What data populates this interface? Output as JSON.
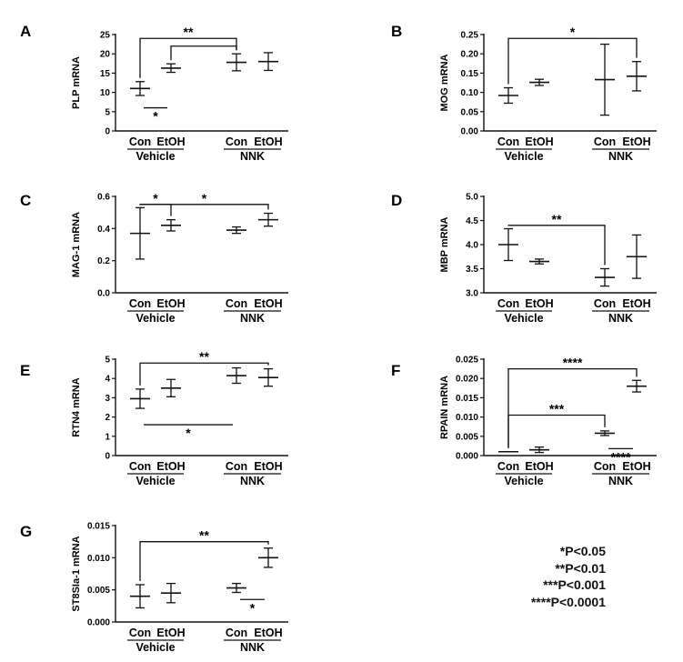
{
  "legend": [
    "*P<0.05",
    "**P<0.01",
    "***P<0.001",
    "****P<0.0001"
  ],
  "chart_data": [
    {
      "panel": "A",
      "type": "scatter",
      "ylabel": "PLP mRNA",
      "ylim": [
        0,
        25
      ],
      "yticks": [
        "0",
        "5",
        "10",
        "15",
        "20",
        "25"
      ],
      "categories": [
        "Con",
        "EtOH",
        "Con",
        "EtOH"
      ],
      "groups": [
        "Vehicle",
        "NNK"
      ],
      "means": [
        11.0,
        16.3,
        17.8,
        18.0
      ],
      "errors": [
        1.8,
        1.1,
        2.2,
        2.3
      ],
      "significance": [
        {
          "pair": [
            0,
            2
          ],
          "label": "**",
          "y": 24
        },
        {
          "pair": [
            1,
            2
          ],
          "label": "",
          "y": 22
        },
        {
          "pair": [
            0,
            1
          ],
          "label": "*",
          "y": 6,
          "below": true
        }
      ]
    },
    {
      "panel": "B",
      "type": "scatter",
      "ylabel": "MOG mRNA",
      "ylim": [
        0,
        0.25
      ],
      "yticks": [
        "0.00",
        "0.05",
        "0.10",
        "0.15",
        "0.20",
        "0.25"
      ],
      "categories": [
        "Con",
        "EtOH",
        "Con",
        "EtOH"
      ],
      "groups": [
        "Vehicle",
        "NNK"
      ],
      "means": [
        0.092,
        0.126,
        0.133,
        0.142
      ],
      "errors": [
        0.02,
        0.008,
        0.092,
        0.038
      ],
      "significance": [
        {
          "pair": [
            0,
            3
          ],
          "label": "*",
          "y": 0.24
        }
      ]
    },
    {
      "panel": "C",
      "type": "scatter",
      "ylabel": "MAG-1 mRNA",
      "ylim": [
        0,
        0.6
      ],
      "yticks": [
        "0.0",
        "0.2",
        "0.4",
        "0.6"
      ],
      "categories": [
        "Con",
        "EtOH",
        "Con",
        "EtOH"
      ],
      "groups": [
        "Vehicle",
        "NNK"
      ],
      "means": [
        0.37,
        0.42,
        0.39,
        0.455
      ],
      "errors": [
        0.16,
        0.035,
        0.02,
        0.04
      ],
      "significance": [
        {
          "pair": [
            0,
            1
          ],
          "label": "*",
          "y": 0.55
        },
        {
          "pair": [
            0,
            3
          ],
          "label": "*",
          "y": 0.55
        }
      ]
    },
    {
      "panel": "D",
      "type": "scatter",
      "ylabel": "MBP mRNA",
      "ylim": [
        3.0,
        5.0
      ],
      "yticks": [
        "3.0",
        "3.5",
        "4.0",
        "4.5",
        "5.0"
      ],
      "categories": [
        "Con",
        "EtOH",
        "Con",
        "EtOH"
      ],
      "groups": [
        "Vehicle",
        "NNK"
      ],
      "means": [
        4.0,
        3.65,
        3.32,
        3.75
      ],
      "errors": [
        0.33,
        0.05,
        0.18,
        0.45
      ],
      "significance": [
        {
          "pair": [
            0,
            2
          ],
          "label": "**",
          "y": 4.4
        }
      ]
    },
    {
      "panel": "E",
      "type": "scatter",
      "ylabel": "RTN4 mRNA",
      "ylim": [
        0,
        5
      ],
      "yticks": [
        "0",
        "1",
        "2",
        "3",
        "4",
        "5"
      ],
      "categories": [
        "Con",
        "EtOH",
        "Con",
        "EtOH"
      ],
      "groups": [
        "Vehicle",
        "NNK"
      ],
      "means": [
        2.95,
        3.5,
        4.15,
        4.05
      ],
      "errors": [
        0.5,
        0.45,
        0.4,
        0.45
      ],
      "significance": [
        {
          "pair": [
            0,
            3
          ],
          "label": "**",
          "y": 4.8
        },
        {
          "pair": [
            0,
            2
          ],
          "label": "*",
          "y": 1.6,
          "below": true
        }
      ]
    },
    {
      "panel": "F",
      "type": "scatter",
      "ylabel": "RPAIN mRNA",
      "ylim": [
        0,
        0.025
      ],
      "yticks": [
        "0.000",
        "0.005",
        "0.010",
        "0.015",
        "0.020",
        "0.025"
      ],
      "categories": [
        "Con",
        "EtOH",
        "Con",
        "EtOH"
      ],
      "groups": [
        "Vehicle",
        "NNK"
      ],
      "means": [
        0.001,
        0.0015,
        0.0058,
        0.018
      ],
      "errors": [
        0.0,
        0.0007,
        0.0006,
        0.0015
      ],
      "significance": [
        {
          "pair": [
            0,
            3
          ],
          "label": "****",
          "y": 0.0225
        },
        {
          "pair": [
            0,
            2
          ],
          "label": "***",
          "y": 0.0105
        },
        {
          "pair": [
            2,
            3
          ],
          "label": "****",
          "y": 0.0018,
          "below": true
        }
      ]
    },
    {
      "panel": "G",
      "type": "scatter",
      "ylabel": "ST8SIa-1 mRNA",
      "ylim": [
        0,
        0.015
      ],
      "yticks": [
        "0.000",
        "0.005",
        "0.010",
        "0.015"
      ],
      "categories": [
        "Con",
        "EtOH",
        "Con",
        "EtOH"
      ],
      "groups": [
        "Vehicle",
        "NNK"
      ],
      "means": [
        0.004,
        0.0045,
        0.0053,
        0.01
      ],
      "errors": [
        0.0018,
        0.0015,
        0.0007,
        0.0015
      ],
      "significance": [
        {
          "pair": [
            0,
            3
          ],
          "label": "**",
          "y": 0.0125
        },
        {
          "pair": [
            2,
            3
          ],
          "label": "*",
          "y": 0.0035,
          "below": true
        }
      ]
    }
  ]
}
